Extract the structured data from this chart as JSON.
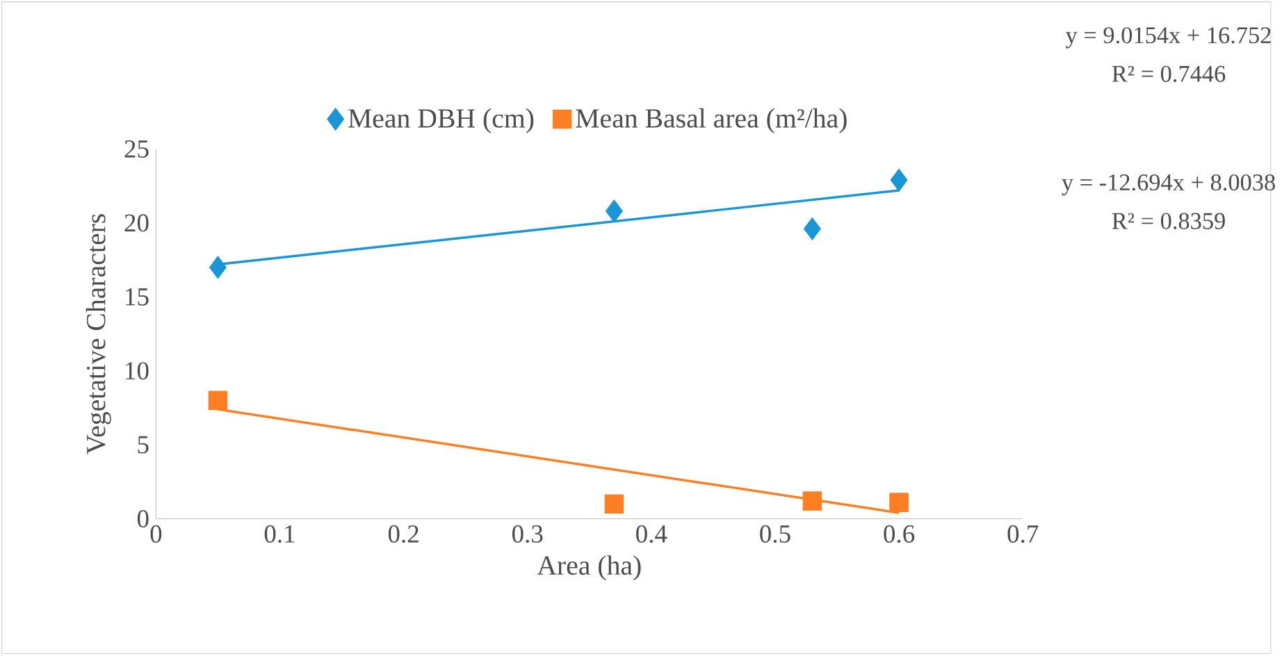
{
  "chart_data": {
    "type": "scatter",
    "xlabel": "Area (ha)",
    "ylabel": "Vegetative Characters",
    "xlim": [
      0,
      0.7
    ],
    "xticks": [
      0,
      0.1,
      0.2,
      0.3,
      0.4,
      0.5,
      0.6,
      0.7
    ],
    "ylim": [
      0,
      25
    ],
    "yticks": [
      0,
      5,
      10,
      15,
      20,
      25
    ],
    "grid": false,
    "legend": "top",
    "series": [
      {
        "name": "Mean DBH (cm)",
        "color": "#1a96d4",
        "marker": "diamond",
        "x": [
          0.05,
          0.37,
          0.53,
          0.6
        ],
        "values": [
          17.0,
          20.8,
          19.6,
          22.9
        ]
      },
      {
        "name": "Mean Basal area (m²/ha)",
        "color": "#fd7e23",
        "marker": "square",
        "x": [
          0.05,
          0.37,
          0.53,
          0.6
        ],
        "values": [
          8.0,
          1.0,
          1.2,
          1.1
        ]
      },
      {
        "type": "line",
        "color": "#1a96d4",
        "marker": "none",
        "x": [
          0.05,
          0.6
        ],
        "values": [
          17.2,
          22.2
        ]
      },
      {
        "type": "line",
        "color": "#fd7e23",
        "marker": "none",
        "x": [
          0.05,
          0.6
        ],
        "values": [
          7.4,
          0.4
        ]
      }
    ],
    "annotations": [
      "y = 9.0154x + 16.752",
      "R² = 0.7446",
      "y = -12.694x + 8.0038",
      "R² = 0.8359"
    ]
  }
}
